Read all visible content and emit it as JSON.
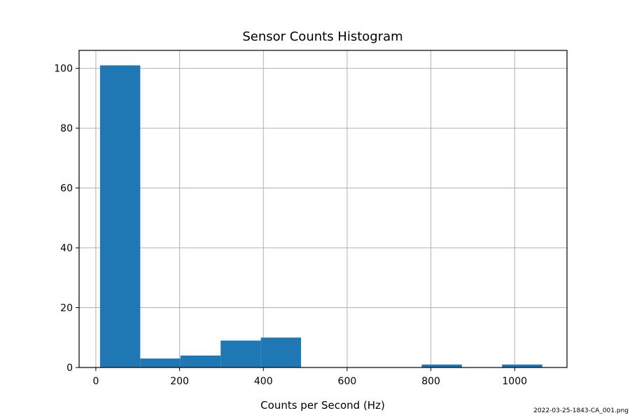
{
  "chart_data": {
    "type": "bar",
    "title": "Sensor Counts Histogram",
    "xlabel": "Counts per Second (Hz)",
    "ylabel": "",
    "xlim": [
      -40,
      1125
    ],
    "ylim": [
      0,
      106
    ],
    "x_ticks": [
      0,
      200,
      400,
      600,
      800,
      1000
    ],
    "y_ticks": [
      0,
      20,
      40,
      60,
      80,
      100
    ],
    "grid": true,
    "bar_color": "#1f77b4",
    "bins": [
      {
        "x0": 10,
        "x1": 106,
        "count": 101
      },
      {
        "x0": 106,
        "x1": 202,
        "count": 3
      },
      {
        "x0": 202,
        "x1": 298,
        "count": 4
      },
      {
        "x0": 298,
        "x1": 394,
        "count": 9
      },
      {
        "x0": 394,
        "x1": 490,
        "count": 10
      },
      {
        "x0": 490,
        "x1": 586,
        "count": 0
      },
      {
        "x0": 586,
        "x1": 682,
        "count": 0
      },
      {
        "x0": 682,
        "x1": 778,
        "count": 0
      },
      {
        "x0": 778,
        "x1": 874,
        "count": 1
      },
      {
        "x0": 874,
        "x1": 970,
        "count": 0
      },
      {
        "x0": 970,
        "x1": 1066,
        "count": 1
      }
    ]
  },
  "footer_filename": "2022-03-25-1843-CA_001.png"
}
